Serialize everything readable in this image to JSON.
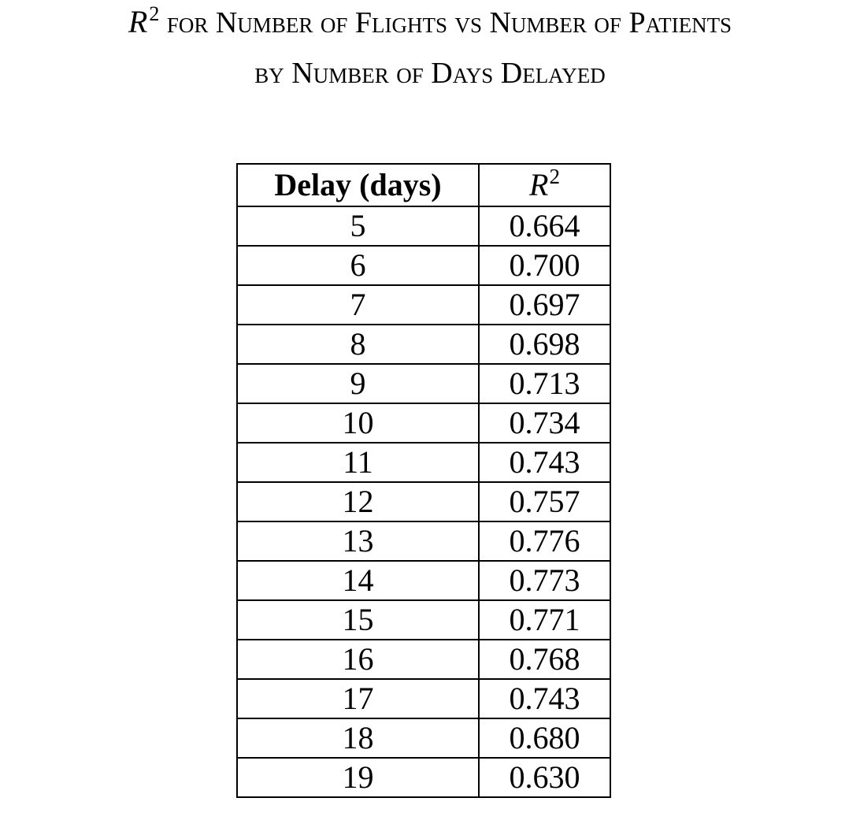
{
  "chart_data": {
    "type": "table",
    "title": {
      "line1": {
        "symbol": "R",
        "superscript": "2",
        "text": " for Number of Flights vs Number of Patients"
      },
      "line2": "by Number of Days Delayed"
    },
    "columns": {
      "delay": "Delay (days)",
      "r2_symbol": "R",
      "r2_superscript": "2"
    },
    "rows": [
      {
        "delay": "5",
        "r2": "0.664"
      },
      {
        "delay": "6",
        "r2": "0.700"
      },
      {
        "delay": "7",
        "r2": "0.697"
      },
      {
        "delay": "8",
        "r2": "0.698"
      },
      {
        "delay": "9",
        "r2": "0.713"
      },
      {
        "delay": "10",
        "r2": "0.734"
      },
      {
        "delay": "11",
        "r2": "0.743"
      },
      {
        "delay": "12",
        "r2": "0.757"
      },
      {
        "delay": "13",
        "r2": "0.776"
      },
      {
        "delay": "14",
        "r2": "0.773"
      },
      {
        "delay": "15",
        "r2": "0.771"
      },
      {
        "delay": "16",
        "r2": "0.768"
      },
      {
        "delay": "17",
        "r2": "0.743"
      },
      {
        "delay": "18",
        "r2": "0.680"
      },
      {
        "delay": "19",
        "r2": "0.630"
      }
    ]
  }
}
